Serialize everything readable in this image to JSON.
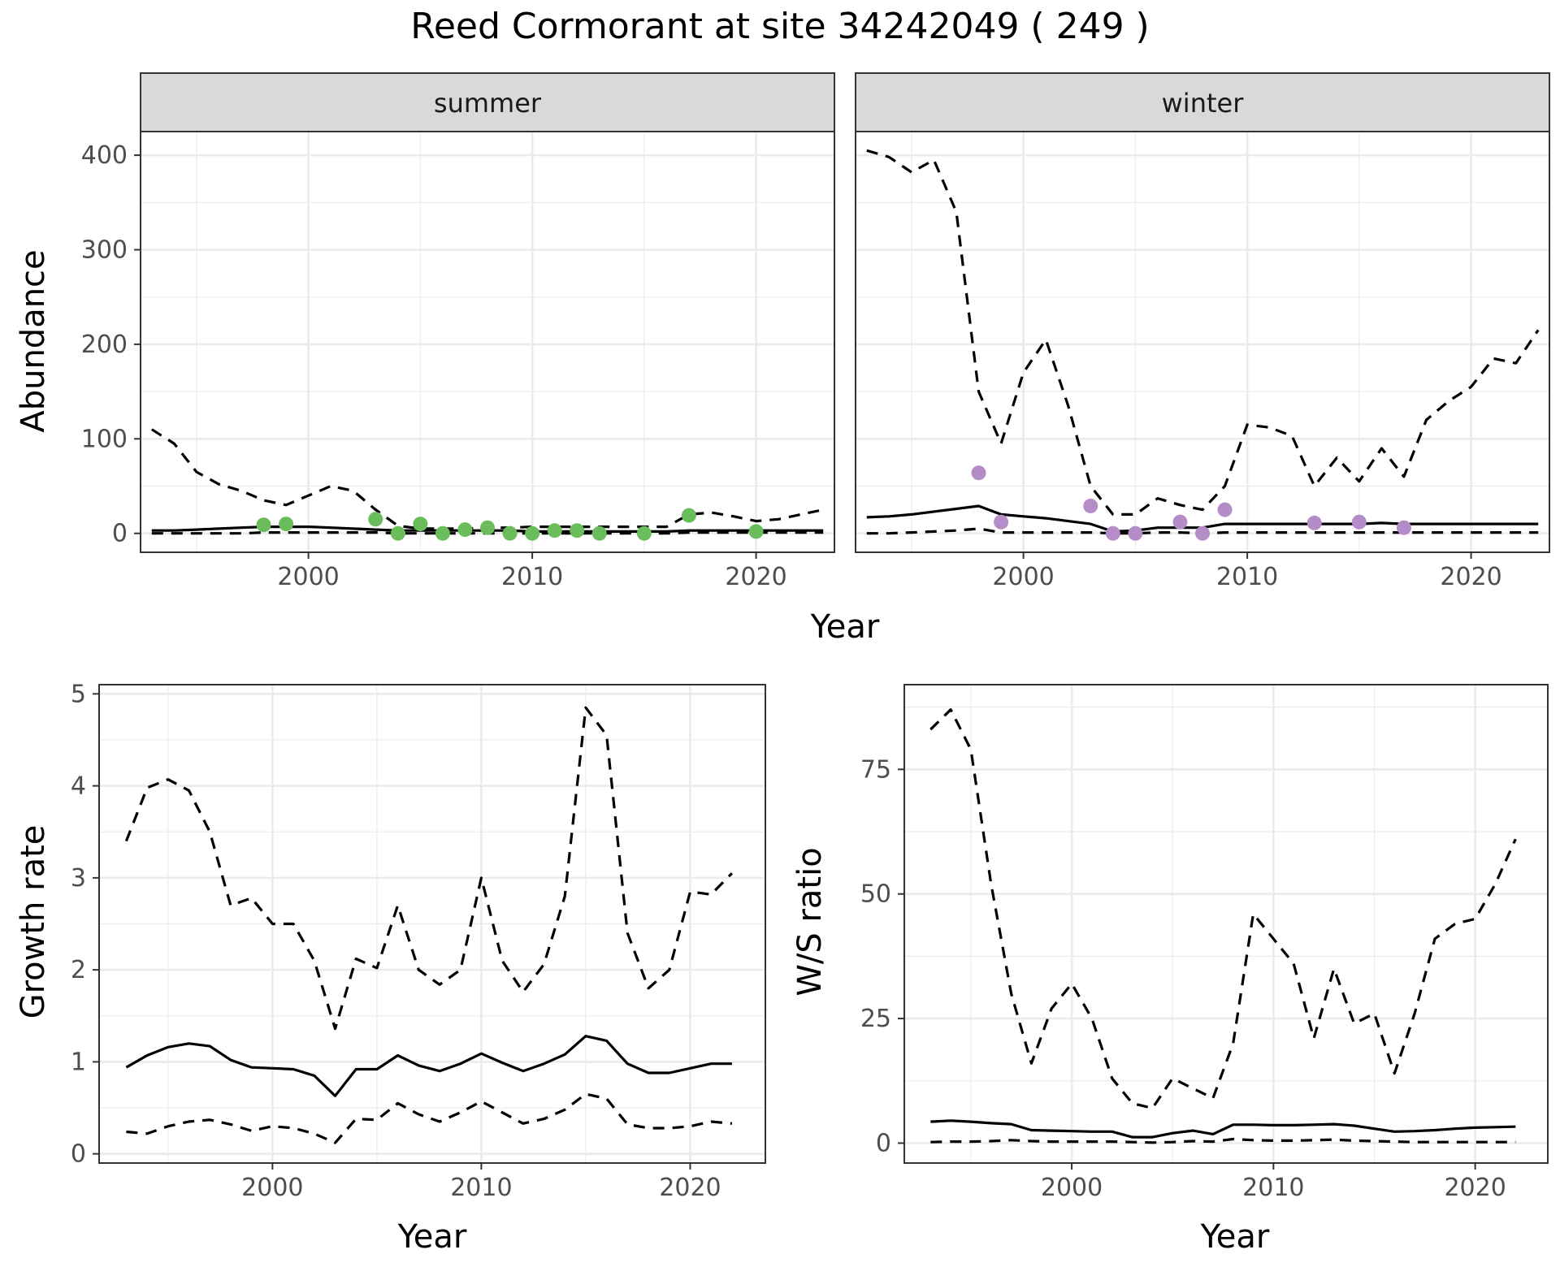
{
  "figure_title": "Reed Cormorant at site 34242049 ( 249 )",
  "colors": {
    "summer_points": "#6bbd5b",
    "winter_points": "#b48cc8",
    "lines": "#000000",
    "strip_fill": "#d9d9d9",
    "grid": "#ebebeb"
  },
  "line_styles": {
    "mean": "solid",
    "upper": "dashed",
    "lower": "dashed"
  },
  "chart_data": [
    {
      "type": "line",
      "panel": "summer",
      "facet_label": "summer",
      "xlabel": "Year",
      "ylabel": "Abundance",
      "xlim": [
        1992.5,
        2023.5
      ],
      "ylim": [
        -20,
        425
      ],
      "xticks": [
        2000,
        2010,
        2020
      ],
      "yticks": [
        0,
        100,
        200,
        300,
        400
      ],
      "x": [
        1993,
        1994,
        1995,
        1996,
        1997,
        1998,
        1999,
        2000,
        2001,
        2002,
        2003,
        2004,
        2005,
        2006,
        2007,
        2008,
        2009,
        2010,
        2011,
        2012,
        2013,
        2014,
        2015,
        2016,
        2017,
        2018,
        2019,
        2020,
        2021,
        2022,
        2023
      ],
      "series": [
        {
          "role": "mean",
          "values": [
            3,
            3,
            4,
            5,
            6,
            7,
            7,
            7,
            6,
            5,
            4,
            3,
            3,
            3,
            3,
            3,
            3,
            2,
            2,
            2,
            2,
            2,
            2,
            2,
            3,
            3,
            3,
            3,
            3,
            3,
            3
          ]
        },
        {
          "role": "upper",
          "values": [
            110,
            95,
            65,
            52,
            45,
            35,
            30,
            40,
            50,
            45,
            25,
            8,
            5,
            5,
            5,
            6,
            6,
            7,
            7,
            7,
            7,
            7,
            7,
            7,
            20,
            22,
            18,
            13,
            15,
            20,
            25
          ]
        },
        {
          "role": "lower",
          "values": [
            0,
            0,
            0,
            0,
            0,
            1,
            1,
            1,
            1,
            1,
            1,
            0,
            0,
            0,
            0,
            0,
            0,
            0,
            0,
            0,
            0,
            0,
            0,
            0,
            1,
            1,
            1,
            1,
            1,
            1,
            1
          ]
        }
      ],
      "points": {
        "x": [
          1998,
          1999,
          2003,
          2004,
          2005,
          2006,
          2007,
          2008,
          2009,
          2010,
          2011,
          2012,
          2013,
          2015,
          2017,
          2020
        ],
        "y": [
          9,
          10,
          15,
          0,
          10,
          0,
          4,
          6,
          0,
          0,
          3,
          3,
          0,
          0,
          19,
          2
        ]
      }
    },
    {
      "type": "line",
      "panel": "winter",
      "facet_label": "winter",
      "xlabel": "Year",
      "ylabel": "",
      "xlim": [
        1992.5,
        2023.5
      ],
      "ylim": [
        -20,
        425
      ],
      "xticks": [
        2000,
        2010,
        2020
      ],
      "yticks": [
        0,
        100,
        200,
        300,
        400
      ],
      "x": [
        1993,
        1994,
        1995,
        1996,
        1997,
        1998,
        1999,
        2000,
        2001,
        2002,
        2003,
        2004,
        2005,
        2006,
        2007,
        2008,
        2009,
        2010,
        2011,
        2012,
        2013,
        2014,
        2015,
        2016,
        2017,
        2018,
        2019,
        2020,
        2021,
        2022,
        2023
      ],
      "series": [
        {
          "role": "mean",
          "values": [
            17,
            18,
            20,
            23,
            26,
            29,
            20,
            18,
            16,
            13,
            10,
            2,
            3,
            6,
            6,
            6,
            10,
            10,
            10,
            10,
            10,
            10,
            10,
            11,
            10,
            10,
            10,
            10,
            10,
            10,
            10
          ]
        },
        {
          "role": "upper",
          "values": [
            405,
            398,
            382,
            395,
            340,
            150,
            95,
            170,
            205,
            135,
            50,
            20,
            20,
            37,
            30,
            25,
            50,
            115,
            112,
            103,
            50,
            80,
            55,
            90,
            60,
            120,
            140,
            155,
            185,
            180,
            215
          ]
        },
        {
          "role": "lower",
          "values": [
            0,
            0,
            1,
            2,
            3,
            5,
            1,
            1,
            1,
            1,
            1,
            0,
            0,
            1,
            1,
            0,
            1,
            1,
            1,
            1,
            1,
            1,
            1,
            1,
            1,
            1,
            1,
            1,
            1,
            1,
            1
          ]
        }
      ],
      "points": {
        "x": [
          1998,
          1999,
          2003,
          2004,
          2005,
          2007,
          2008,
          2009,
          2013,
          2015,
          2017
        ],
        "y": [
          64,
          12,
          29,
          0,
          0,
          12,
          0,
          25,
          11,
          12,
          6
        ]
      }
    },
    {
      "type": "line",
      "panel": "growth",
      "xlabel": "Year",
      "ylabel": "Growth rate",
      "xlim": [
        1991.7,
        2023.6
      ],
      "ylim": [
        -0.1,
        5.1
      ],
      "xticks": [
        2000,
        2010,
        2020
      ],
      "yticks": [
        0,
        1,
        2,
        3,
        4,
        5
      ],
      "x": [
        1993,
        1994,
        1995,
        1996,
        1997,
        1998,
        1999,
        2000,
        2001,
        2002,
        2003,
        2004,
        2005,
        2006,
        2007,
        2008,
        2009,
        2010,
        2011,
        2012,
        2013,
        2014,
        2015,
        2016,
        2017,
        2018,
        2019,
        2020,
        2021,
        2022
      ],
      "series": [
        {
          "role": "mean",
          "values": [
            0.94,
            1.07,
            1.16,
            1.2,
            1.17,
            1.02,
            0.94,
            0.93,
            0.92,
            0.85,
            0.63,
            0.92,
            0.92,
            1.07,
            0.96,
            0.9,
            0.98,
            1.09,
            0.99,
            0.9,
            0.98,
            1.08,
            1.28,
            1.23,
            0.98,
            0.88,
            0.88,
            0.93,
            0.98,
            0.98
          ]
        },
        {
          "role": "upper",
          "values": [
            3.4,
            3.98,
            4.07,
            3.95,
            3.5,
            2.7,
            2.78,
            2.5,
            2.5,
            2.1,
            1.36,
            2.12,
            2.02,
            2.7,
            2.0,
            1.84,
            2.0,
            3.0,
            2.1,
            1.76,
            2.06,
            2.8,
            4.85,
            4.55,
            2.4,
            1.8,
            2.0,
            2.85,
            2.82,
            3.05
          ]
        },
        {
          "role": "lower",
          "values": [
            0.24,
            0.22,
            0.3,
            0.35,
            0.37,
            0.32,
            0.25,
            0.3,
            0.28,
            0.22,
            0.12,
            0.38,
            0.37,
            0.55,
            0.43,
            0.35,
            0.45,
            0.57,
            0.45,
            0.33,
            0.38,
            0.48,
            0.65,
            0.6,
            0.32,
            0.28,
            0.28,
            0.3,
            0.35,
            0.33
          ]
        }
      ]
    },
    {
      "type": "line",
      "panel": "ratio",
      "xlabel": "Year",
      "ylabel": "W/S ratio",
      "xlim": [
        1991.7,
        2023.6
      ],
      "ylim": [
        -4,
        92
      ],
      "xticks": [
        2000,
        2010,
        2020
      ],
      "yticks": [
        0,
        25,
        50,
        75
      ],
      "x": [
        1993,
        1994,
        1995,
        1996,
        1997,
        1998,
        1999,
        2000,
        2001,
        2002,
        2003,
        2004,
        2005,
        2006,
        2007,
        2008,
        2009,
        2010,
        2011,
        2012,
        2013,
        2014,
        2015,
        2016,
        2017,
        2018,
        2019,
        2020,
        2021,
        2022
      ],
      "series": [
        {
          "role": "mean",
          "values": [
            4.3,
            4.5,
            4.3,
            4,
            3.8,
            2.6,
            2.5,
            2.4,
            2.3,
            2.3,
            1.2,
            1.2,
            2,
            2.5,
            1.8,
            3.7,
            3.7,
            3.6,
            3.6,
            3.7,
            3.8,
            3.5,
            2.9,
            2.3,
            2.4,
            2.6,
            2.9,
            3.1,
            3.2,
            3.3
          ]
        },
        {
          "role": "upper",
          "values": [
            83,
            87,
            79,
            52,
            30,
            16,
            27,
            32,
            25,
            13,
            8,
            7,
            13,
            11,
            9,
            20,
            46,
            41,
            36,
            21,
            35,
            24,
            26,
            14,
            26,
            41,
            44,
            45,
            52,
            61
          ]
        },
        {
          "role": "lower",
          "values": [
            0.2,
            0.3,
            0.3,
            0.4,
            0.6,
            0.4,
            0.3,
            0.3,
            0.3,
            0.3,
            0.2,
            0.1,
            0.2,
            0.4,
            0.3,
            0.8,
            0.6,
            0.5,
            0.5,
            0.6,
            0.7,
            0.5,
            0.4,
            0.3,
            0.2,
            0.2,
            0.2,
            0.2,
            0.2,
            0.2
          ]
        }
      ]
    }
  ]
}
